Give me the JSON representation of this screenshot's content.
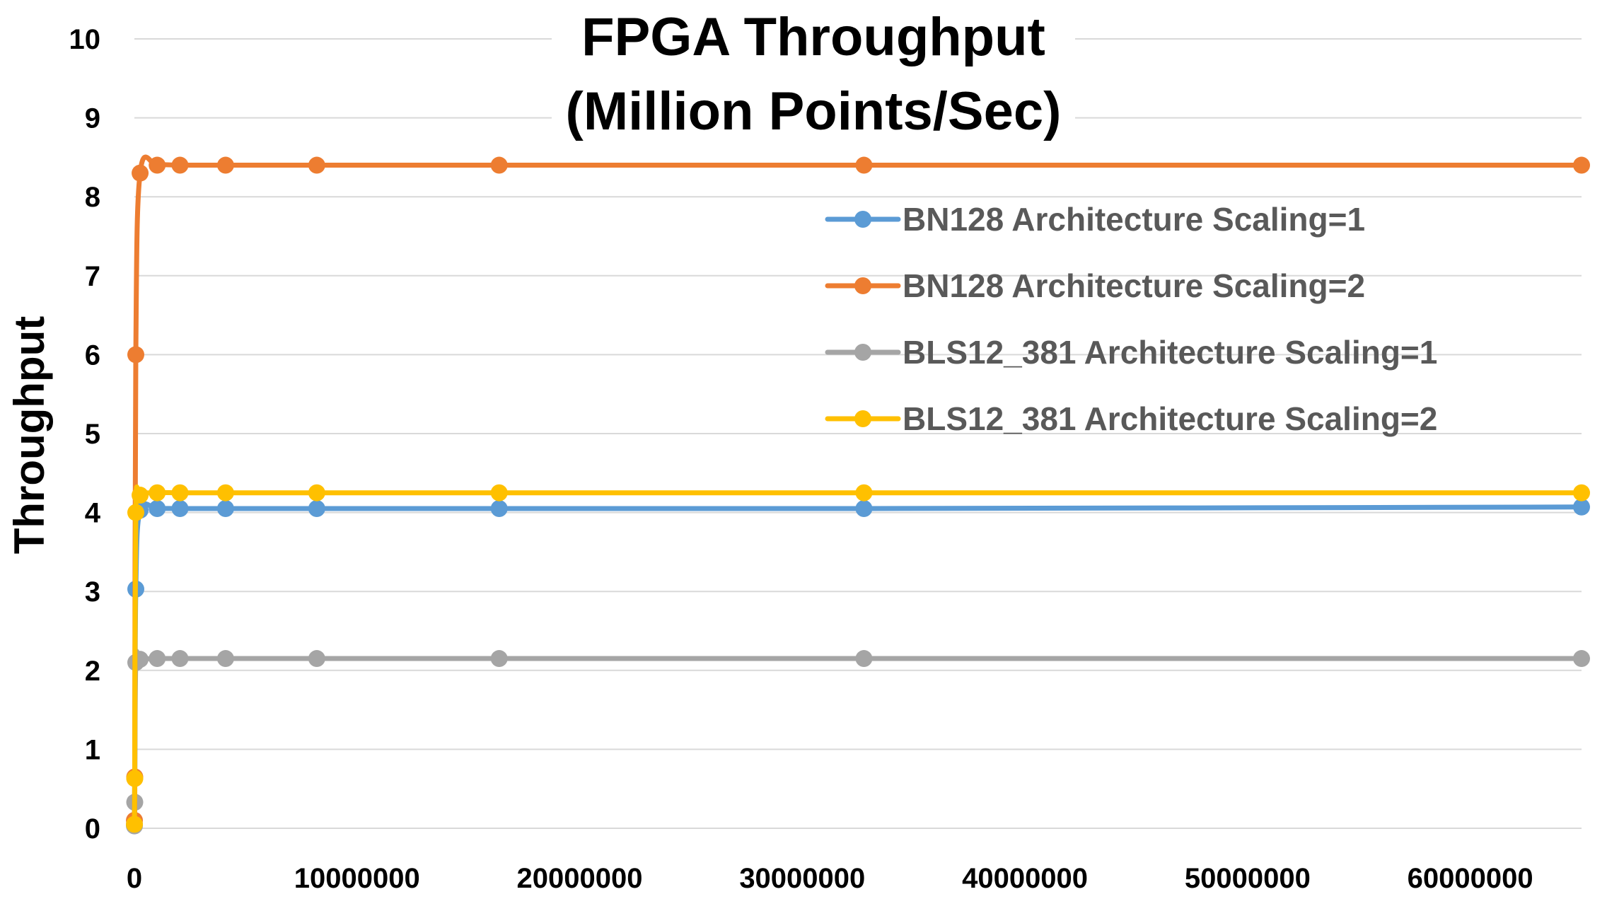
{
  "chart_data": {
    "type": "line",
    "title_line1": "FPGA Throughput",
    "title_line2": "(Million Points/Sec)",
    "xlabel": "",
    "ylabel": "Throughput",
    "xlim": [
      0,
      65000000
    ],
    "ylim": [
      0,
      10
    ],
    "x_ticks": [
      "0",
      "10000000",
      "20000000",
      "30000000",
      "40000000",
      "50000000",
      "60000000"
    ],
    "y_ticks": [
      "0",
      "1",
      "2",
      "3",
      "4",
      "5",
      "6",
      "7",
      "8",
      "9",
      "10"
    ],
    "grid": true,
    "legend_position": "right",
    "x": [
      1000,
      16000,
      64000,
      256000,
      1024000,
      2048000,
      4096000,
      8192000,
      16384000,
      32768000,
      65000000
    ],
    "series": [
      {
        "name": "BN128 Architecture Scaling=1",
        "color": "#5b9bd5",
        "values": [
          0.05,
          0.64,
          3.03,
          4.03,
          4.05,
          4.05,
          4.05,
          4.05,
          4.05,
          4.05,
          4.07
        ]
      },
      {
        "name": "BN128 Architecture Scaling=2",
        "color": "#ed7d31",
        "values": [
          0.1,
          0.65,
          6.0,
          8.3,
          8.4,
          8.4,
          8.4,
          8.4,
          8.4,
          8.4,
          8.4
        ]
      },
      {
        "name": "BLS12_381 Architecture Scaling=1",
        "color": "#a5a5a5",
        "values": [
          0.03,
          0.33,
          2.1,
          2.14,
          2.15,
          2.15,
          2.15,
          2.15,
          2.15,
          2.15,
          2.15
        ]
      },
      {
        "name": "BLS12_381 Architecture Scaling=2",
        "color": "#ffc000",
        "values": [
          0.05,
          0.63,
          4.0,
          4.22,
          4.25,
          4.25,
          4.25,
          4.25,
          4.25,
          4.25,
          4.25
        ]
      }
    ]
  }
}
